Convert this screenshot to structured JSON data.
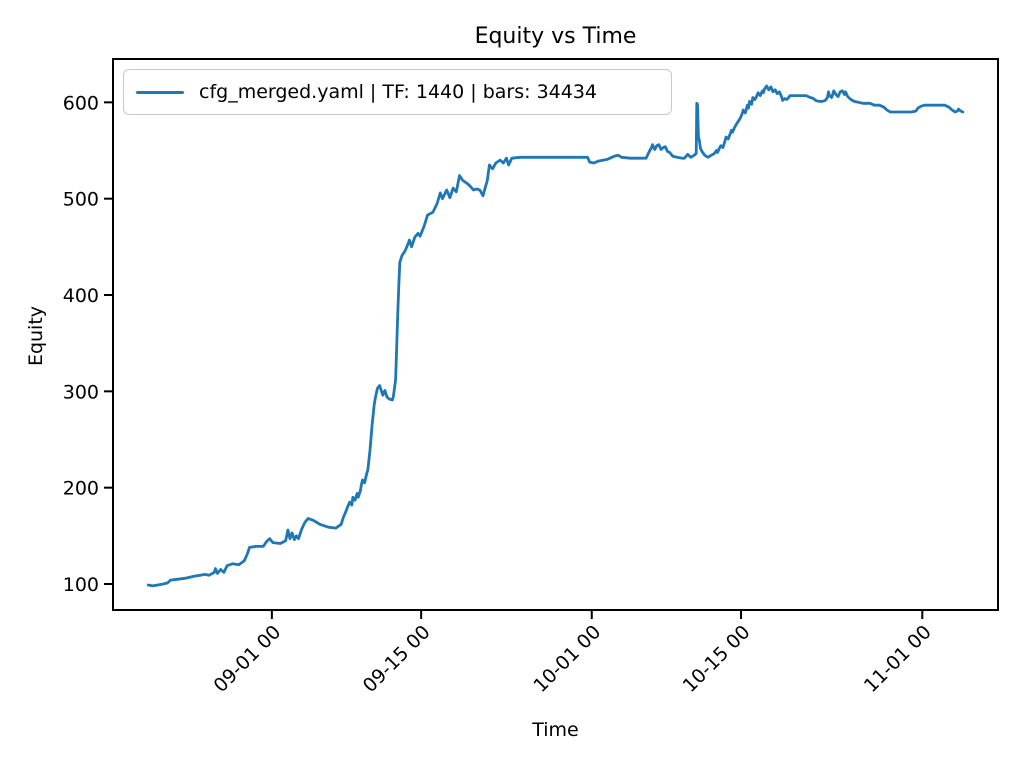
{
  "figure": {
    "title": "Equity vs Time",
    "xlabel": "Time",
    "ylabel": "Equity",
    "legend": {
      "label": "cfg_merged.yaml | TF: 1440 | bars: 34434",
      "line_color": "#1f77b4"
    },
    "colors": {
      "line": "#1f77b4",
      "spine": "#000000",
      "text": "#000000",
      "legend_border": "#c9c9c9",
      "background": "#ffffff"
    }
  },
  "chart_data": {
    "type": "line",
    "title": "Equity vs Time",
    "xlabel": "Time",
    "ylabel": "Equity",
    "grid": false,
    "legend_position": "upper left",
    "x_unit": "days relative to 09-01 00:00",
    "xlim": [
      -14.9,
      68.1
    ],
    "ylim": [
      73,
      645
    ],
    "yticks": [
      100,
      200,
      300,
      400,
      500,
      600
    ],
    "xticks": [
      {
        "pos": 0,
        "label": "09-01 00"
      },
      {
        "pos": 14,
        "label": "09-15 00"
      },
      {
        "pos": 30,
        "label": "10-01 00"
      },
      {
        "pos": 44,
        "label": "10-15 00"
      },
      {
        "pos": 61,
        "label": "11-01 00"
      }
    ],
    "series": [
      {
        "name": "cfg_merged.yaml | TF: 1440 | bars: 34434",
        "color": "#1f77b4",
        "points": [
          [
            -11.6,
            99
          ],
          [
            -11.2,
            98
          ],
          [
            -10.7,
            99
          ],
          [
            -10.2,
            100
          ],
          [
            -9.8,
            101
          ],
          [
            -9.5,
            104
          ],
          [
            -8.8,
            105
          ],
          [
            -8.1,
            106
          ],
          [
            -7.3,
            108
          ],
          [
            -6.7,
            109
          ],
          [
            -6.3,
            110
          ],
          [
            -5.9,
            109
          ],
          [
            -5.4,
            112
          ],
          [
            -5.3,
            116
          ],
          [
            -5.1,
            111
          ],
          [
            -4.8,
            115
          ],
          [
            -4.5,
            112
          ],
          [
            -4.2,
            119
          ],
          [
            -3.7,
            121
          ],
          [
            -3.1,
            120
          ],
          [
            -2.6,
            124
          ],
          [
            -2.3,
            131
          ],
          [
            -2.1,
            138
          ],
          [
            -1.5,
            139
          ],
          [
            -0.8,
            139
          ],
          [
            -0.5,
            144
          ],
          [
            -0.2,
            147
          ],
          [
            0.1,
            143
          ],
          [
            0.8,
            142
          ],
          [
            1.3,
            145
          ],
          [
            1.5,
            156
          ],
          [
            1.7,
            147
          ],
          [
            1.9,
            153
          ],
          [
            2.1,
            146
          ],
          [
            2.3,
            150
          ],
          [
            2.5,
            147
          ],
          [
            2.8,
            157
          ],
          [
            3.1,
            164
          ],
          [
            3.4,
            168
          ],
          [
            3.9,
            166
          ],
          [
            4.5,
            162
          ],
          [
            5.3,
            159
          ],
          [
            6.0,
            158
          ],
          [
            6.5,
            162
          ],
          [
            6.7,
            169
          ],
          [
            6.9,
            174
          ],
          [
            7.1,
            180
          ],
          [
            7.3,
            185
          ],
          [
            7.5,
            182
          ],
          [
            7.6,
            190
          ],
          [
            7.8,
            187
          ],
          [
            8.0,
            194
          ],
          [
            8.1,
            190
          ],
          [
            8.3,
            197
          ],
          [
            8.4,
            203
          ],
          [
            8.5,
            208
          ],
          [
            8.7,
            205
          ],
          [
            8.9,
            215
          ],
          [
            9.0,
            218
          ],
          [
            9.2,
            239
          ],
          [
            9.4,
            265
          ],
          [
            9.6,
            286
          ],
          [
            9.7,
            293
          ],
          [
            9.9,
            303
          ],
          [
            10.1,
            306
          ],
          [
            10.4,
            296
          ],
          [
            10.6,
            301
          ],
          [
            10.8,
            294
          ],
          [
            11.0,
            292
          ],
          [
            11.3,
            291
          ],
          [
            11.4,
            295
          ],
          [
            11.6,
            312
          ],
          [
            11.7,
            343
          ],
          [
            11.8,
            379
          ],
          [
            11.9,
            410
          ],
          [
            12.0,
            434
          ],
          [
            12.2,
            441
          ],
          [
            12.5,
            446
          ],
          [
            12.8,
            454
          ],
          [
            12.9,
            457
          ],
          [
            13.1,
            450
          ],
          [
            13.4,
            460
          ],
          [
            13.7,
            464
          ],
          [
            13.9,
            461
          ],
          [
            14.3,
            472
          ],
          [
            14.6,
            483
          ],
          [
            15.1,
            486
          ],
          [
            15.5,
            495
          ],
          [
            15.8,
            506
          ],
          [
            16.0,
            500
          ],
          [
            16.4,
            509
          ],
          [
            16.7,
            501
          ],
          [
            17.0,
            511
          ],
          [
            17.3,
            507
          ],
          [
            17.6,
            524
          ],
          [
            17.9,
            519
          ],
          [
            18.3,
            516
          ],
          [
            18.6,
            513
          ],
          [
            18.9,
            509
          ],
          [
            19.2,
            510
          ],
          [
            19.5,
            509
          ],
          [
            19.8,
            503
          ],
          [
            20.0,
            511
          ],
          [
            20.2,
            519
          ],
          [
            20.4,
            535
          ],
          [
            20.7,
            531
          ],
          [
            21.0,
            537
          ],
          [
            21.4,
            540
          ],
          [
            21.7,
            537
          ],
          [
            22.0,
            542
          ],
          [
            22.2,
            535
          ],
          [
            22.5,
            542
          ],
          [
            23.3,
            543
          ],
          [
            24.7,
            543
          ],
          [
            26.1,
            543
          ],
          [
            27.5,
            543
          ],
          [
            28.9,
            543
          ],
          [
            29.6,
            543
          ],
          [
            29.8,
            538
          ],
          [
            30.2,
            537
          ],
          [
            30.6,
            539
          ],
          [
            31.1,
            540
          ],
          [
            31.5,
            541
          ],
          [
            32.1,
            544
          ],
          [
            32.5,
            545
          ],
          [
            32.8,
            543
          ],
          [
            33.6,
            542
          ],
          [
            34.5,
            542
          ],
          [
            35.1,
            542
          ],
          [
            35.4,
            549
          ],
          [
            35.6,
            553
          ],
          [
            35.7,
            556
          ],
          [
            35.9,
            551
          ],
          [
            36.1,
            555
          ],
          [
            36.3,
            556
          ],
          [
            36.5,
            551
          ],
          [
            36.7,
            553
          ],
          [
            36.9,
            554
          ],
          [
            37.1,
            549
          ],
          [
            37.3,
            548
          ],
          [
            37.6,
            544
          ],
          [
            38.0,
            543
          ],
          [
            38.5,
            542
          ],
          [
            38.7,
            542
          ],
          [
            39.0,
            546
          ],
          [
            39.3,
            543
          ],
          [
            39.6,
            545
          ],
          [
            39.8,
            547
          ],
          [
            39.85,
            599
          ],
          [
            39.92,
            598
          ],
          [
            40.0,
            565
          ],
          [
            40.1,
            560
          ],
          [
            40.2,
            552
          ],
          [
            40.4,
            548
          ],
          [
            40.6,
            545
          ],
          [
            40.9,
            543
          ],
          [
            41.2,
            545
          ],
          [
            41.5,
            547
          ],
          [
            41.7,
            550
          ],
          [
            41.8,
            548
          ],
          [
            42.0,
            553
          ],
          [
            42.1,
            555
          ],
          [
            42.3,
            553
          ],
          [
            42.5,
            560
          ],
          [
            42.6,
            564
          ],
          [
            42.8,
            562
          ],
          [
            43.0,
            568
          ],
          [
            43.1,
            571
          ],
          [
            43.2,
            569
          ],
          [
            43.4,
            574
          ],
          [
            43.6,
            578
          ],
          [
            43.9,
            583
          ],
          [
            44.1,
            588
          ],
          [
            44.2,
            592
          ],
          [
            44.4,
            589
          ],
          [
            44.6,
            597
          ],
          [
            44.7,
            594
          ],
          [
            44.8,
            601
          ],
          [
            45.0,
            598
          ],
          [
            45.1,
            605
          ],
          [
            45.3,
            603
          ],
          [
            45.5,
            607
          ],
          [
            45.6,
            610
          ],
          [
            45.8,
            607
          ],
          [
            46.0,
            612
          ],
          [
            46.1,
            610
          ],
          [
            46.2,
            614
          ],
          [
            46.4,
            617
          ],
          [
            46.6,
            613
          ],
          [
            46.8,
            616
          ],
          [
            47.0,
            611
          ],
          [
            47.2,
            613
          ],
          [
            47.4,
            609
          ],
          [
            47.6,
            611
          ],
          [
            47.8,
            606
          ],
          [
            47.9,
            602
          ],
          [
            48.1,
            604
          ],
          [
            48.3,
            603
          ],
          [
            48.6,
            607
          ],
          [
            49.1,
            607
          ],
          [
            49.5,
            607
          ],
          [
            50.1,
            607
          ],
          [
            50.5,
            605
          ],
          [
            50.8,
            604
          ],
          [
            51.0,
            602
          ],
          [
            51.3,
            601
          ],
          [
            51.6,
            601
          ],
          [
            51.9,
            602
          ],
          [
            52.1,
            605
          ],
          [
            52.2,
            611
          ],
          [
            52.3,
            607
          ],
          [
            52.5,
            605
          ],
          [
            52.7,
            612
          ],
          [
            52.9,
            608
          ],
          [
            53.1,
            606
          ],
          [
            53.3,
            611
          ],
          [
            53.5,
            612
          ],
          [
            53.7,
            608
          ],
          [
            53.8,
            611
          ],
          [
            54.0,
            606
          ],
          [
            54.3,
            603
          ],
          [
            54.6,
            601
          ],
          [
            55.0,
            600
          ],
          [
            55.4,
            599
          ],
          [
            56.1,
            599
          ],
          [
            56.5,
            597
          ],
          [
            57.0,
            597
          ],
          [
            57.4,
            595
          ],
          [
            57.7,
            592
          ],
          [
            58.0,
            590
          ],
          [
            58.5,
            590
          ],
          [
            59.3,
            590
          ],
          [
            60.0,
            590
          ],
          [
            60.4,
            591
          ],
          [
            60.6,
            594
          ],
          [
            60.9,
            596
          ],
          [
            61.2,
            597
          ],
          [
            61.7,
            597
          ],
          [
            62.5,
            597
          ],
          [
            63.1,
            597
          ],
          [
            63.5,
            595
          ],
          [
            63.8,
            592
          ],
          [
            64.1,
            590
          ],
          [
            64.3,
            591
          ],
          [
            64.4,
            593
          ],
          [
            64.6,
            591
          ],
          [
            64.8,
            590
          ]
        ]
      }
    ]
  }
}
